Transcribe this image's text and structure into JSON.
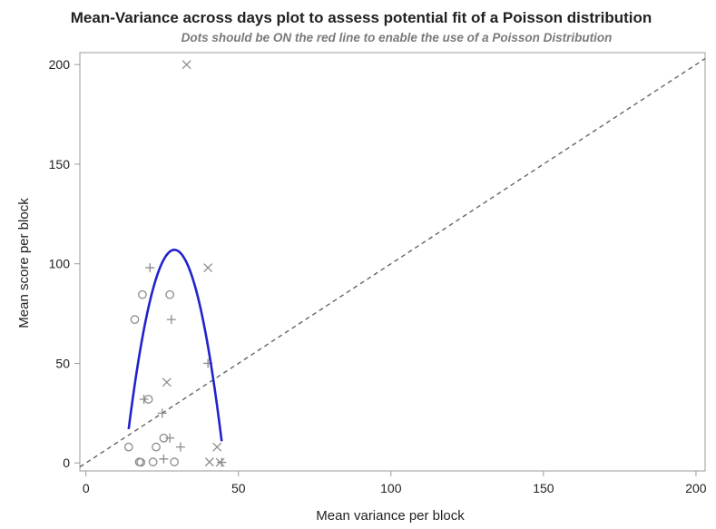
{
  "chart_data": {
    "type": "scatter",
    "title": "Mean-Variance across days plot to assess potential fit of a Poisson distribution",
    "subtitle": "Dots should be ON the red line to enable the use of a Poisson Distribution",
    "xlabel": "Mean variance per block",
    "ylabel": "Mean score per block",
    "xlim": [
      -2,
      203
    ],
    "ylim": [
      -4,
      206
    ],
    "xticks": [
      0,
      50,
      100,
      150,
      200
    ],
    "yticks": [
      0,
      50,
      100,
      150,
      200
    ],
    "grid": false,
    "legend": "none",
    "colors": {
      "marker": "#8c8c8c",
      "curve": "#2222cc",
      "reference": "#666666"
    },
    "series": [
      {
        "marker": "circle",
        "points": [
          [
            14,
            8
          ],
          [
            17.5,
            0.5
          ],
          [
            18,
            0.3
          ],
          [
            16,
            72
          ],
          [
            18.5,
            84.5
          ],
          [
            20.5,
            32
          ],
          [
            22,
            0.5
          ],
          [
            23,
            8
          ],
          [
            25.5,
            12.5
          ],
          [
            27.5,
            84.5
          ],
          [
            29,
            0.5
          ]
        ]
      },
      {
        "marker": "plus",
        "points": [
          [
            19,
            32
          ],
          [
            21,
            98
          ],
          [
            25,
            25
          ],
          [
            25.5,
            2
          ],
          [
            27.5,
            12.5
          ],
          [
            28,
            72
          ],
          [
            31,
            8
          ],
          [
            40,
            50
          ],
          [
            44.5,
            0.3
          ]
        ]
      },
      {
        "marker": "x",
        "points": [
          [
            26.5,
            40.5
          ],
          [
            33,
            200
          ],
          [
            40,
            98
          ],
          [
            40.5,
            0.5
          ],
          [
            43,
            8
          ],
          [
            44,
            0.3
          ]
        ]
      }
    ],
    "reference_line": {
      "style": "dashed",
      "from": [
        -2,
        -2
      ],
      "to": [
        203,
        203
      ]
    },
    "fit_curve": {
      "shape": "parabola",
      "vertex": [
        29,
        107
      ],
      "x_range": [
        14,
        44.5
      ],
      "a": -0.4
    }
  }
}
